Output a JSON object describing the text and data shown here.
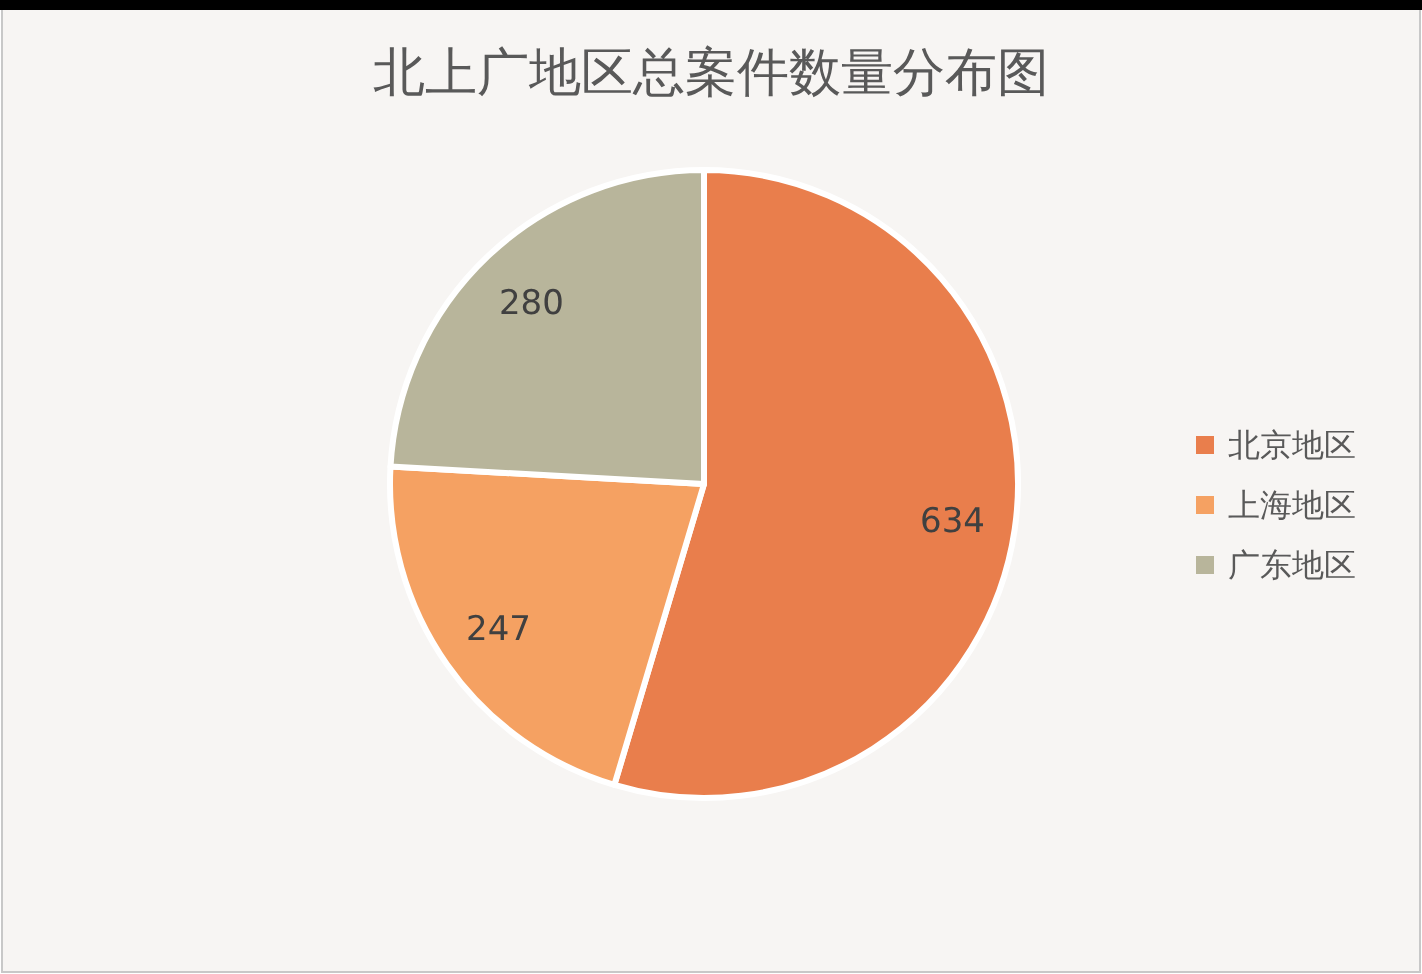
{
  "chart_data": {
    "type": "pie",
    "title": "北上广地区总案件数量分布图",
    "categories": [
      "北京地区",
      "上海地区",
      "广东地区"
    ],
    "values": [
      634,
      247,
      280
    ],
    "colors": [
      "#e97e4c",
      "#f5a162",
      "#b8b59b"
    ],
    "data_labels": true,
    "legend": "right"
  }
}
